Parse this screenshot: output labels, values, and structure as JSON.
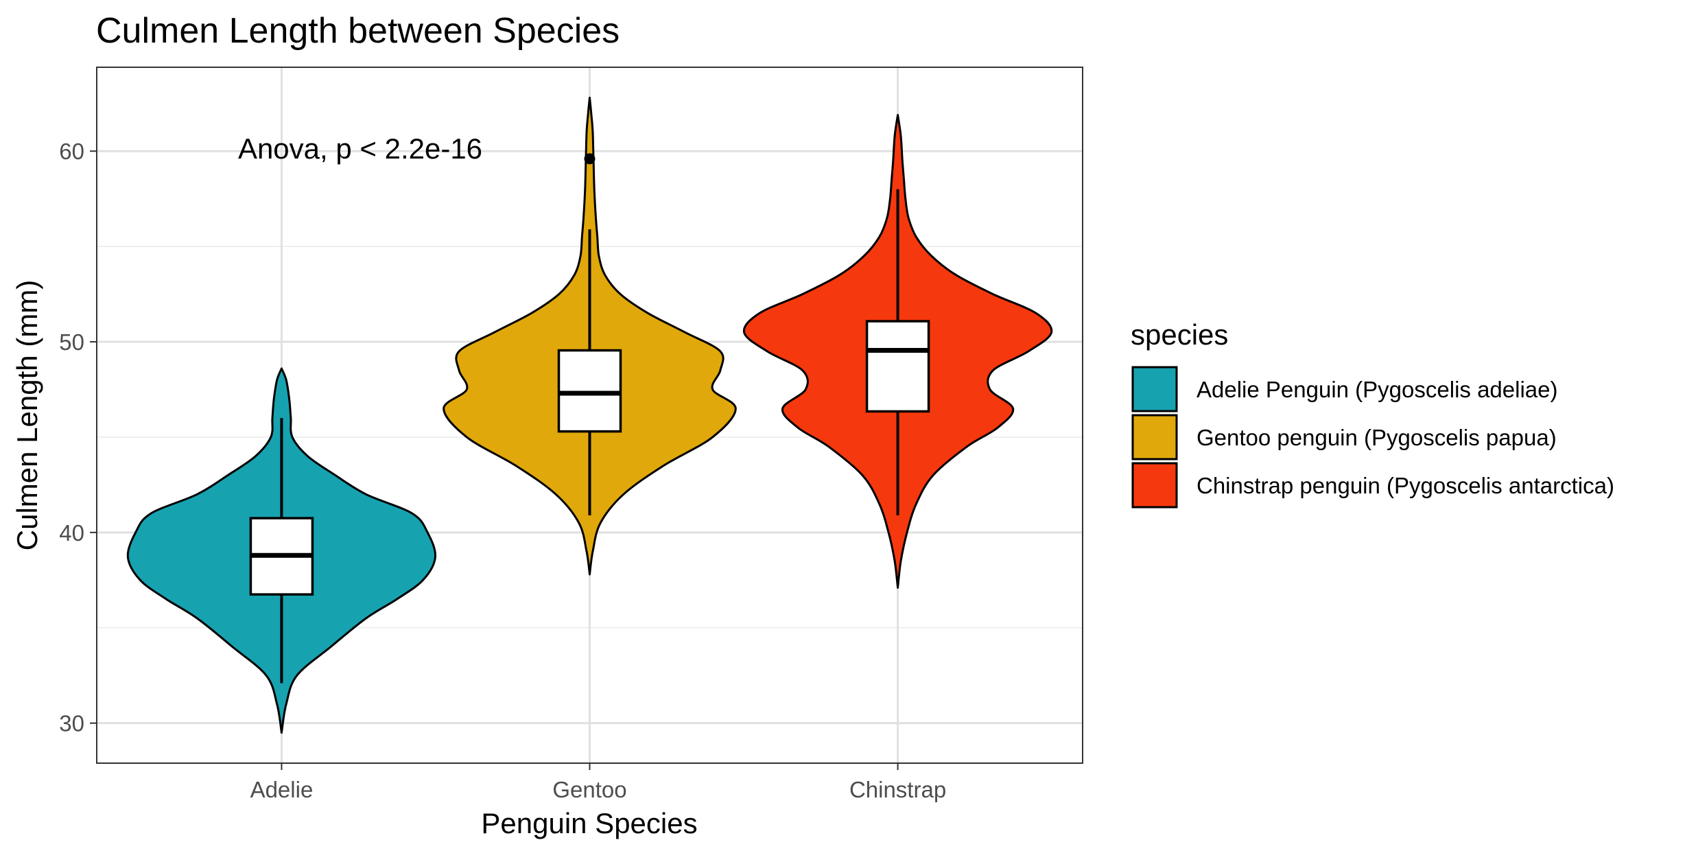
{
  "chart_data": {
    "type": "violin",
    "title": "Culmen Length between Species",
    "xlabel": "Penguin Species",
    "ylabel": "Culmen Length (mm)",
    "ylim": [
      27.9,
      64.4
    ],
    "yticks": [
      30,
      40,
      50,
      60
    ],
    "grid": true,
    "annotation": "Anova, p < 2.2e-16",
    "categories": [
      "Adelie",
      "Gentoo",
      "Chinstrap"
    ],
    "legend": {
      "title": "species",
      "position": "right",
      "entries": [
        {
          "label": "Adelie Penguin (Pygoscelis adeliae)",
          "color": "#17a2b0"
        },
        {
          "label": "Gentoo penguin (Pygoscelis papua)",
          "color": "#e0a80a"
        },
        {
          "label": "Chinstrap penguin (Pygoscelis antarctica)",
          "color": "#f5380e"
        }
      ]
    },
    "series": [
      {
        "category": "Adelie",
        "color": "#17a2b0",
        "box": {
          "whisker_low": 32.1,
          "q1": 36.75,
          "median": 38.8,
          "q3": 40.75,
          "whisker_high": 46.0
        },
        "outliers": [],
        "violin_range": [
          29.5,
          48.6
        ],
        "density": [
          [
            29.5,
            0.0
          ],
          [
            31.0,
            0.03
          ],
          [
            32.5,
            0.1
          ],
          [
            34.0,
            0.32
          ],
          [
            35.5,
            0.55
          ],
          [
            36.5,
            0.75
          ],
          [
            37.5,
            0.92
          ],
          [
            38.7,
            1.0
          ],
          [
            40.0,
            0.95
          ],
          [
            41.0,
            0.85
          ],
          [
            42.0,
            0.55
          ],
          [
            43.0,
            0.35
          ],
          [
            44.0,
            0.17
          ],
          [
            45.0,
            0.07
          ],
          [
            46.0,
            0.06
          ],
          [
            47.0,
            0.05
          ],
          [
            48.0,
            0.03
          ],
          [
            48.6,
            0.0
          ]
        ]
      },
      {
        "category": "Gentoo",
        "color": "#e0a80a",
        "box": {
          "whisker_low": 40.9,
          "q1": 45.3,
          "median": 47.3,
          "q3": 49.55,
          "whisker_high": 55.9
        },
        "outliers": [
          59.6
        ],
        "violin_range": [
          37.8,
          62.8
        ],
        "density": [
          [
            37.8,
            0.0
          ],
          [
            39.0,
            0.02
          ],
          [
            40.5,
            0.07
          ],
          [
            42.0,
            0.22
          ],
          [
            43.5,
            0.48
          ],
          [
            45.0,
            0.8
          ],
          [
            46.5,
            0.95
          ],
          [
            47.5,
            0.8
          ],
          [
            48.5,
            0.85
          ],
          [
            49.5,
            0.85
          ],
          [
            50.5,
            0.62
          ],
          [
            51.5,
            0.38
          ],
          [
            52.5,
            0.2
          ],
          [
            53.5,
            0.1
          ],
          [
            54.5,
            0.06
          ],
          [
            55.5,
            0.05
          ],
          [
            56.5,
            0.04
          ],
          [
            58.0,
            0.03
          ],
          [
            59.5,
            0.025
          ],
          [
            61.0,
            0.02
          ],
          [
            62.0,
            0.01
          ],
          [
            62.8,
            0.0
          ]
        ]
      },
      {
        "category": "Chinstrap",
        "color": "#f5380e",
        "box": {
          "whisker_low": 40.9,
          "q1": 46.35,
          "median": 49.55,
          "q3": 51.08,
          "whisker_high": 58.0
        },
        "outliers": [],
        "violin_range": [
          37.1,
          61.9
        ],
        "density": [
          [
            37.1,
            0.0
          ],
          [
            38.5,
            0.02
          ],
          [
            40.0,
            0.06
          ],
          [
            41.5,
            0.12
          ],
          [
            43.0,
            0.23
          ],
          [
            44.5,
            0.45
          ],
          [
            45.5,
            0.65
          ],
          [
            46.5,
            0.75
          ],
          [
            47.5,
            0.6
          ],
          [
            48.5,
            0.62
          ],
          [
            49.5,
            0.85
          ],
          [
            50.5,
            1.0
          ],
          [
            51.5,
            0.9
          ],
          [
            52.5,
            0.62
          ],
          [
            53.5,
            0.38
          ],
          [
            54.5,
            0.22
          ],
          [
            55.5,
            0.12
          ],
          [
            56.5,
            0.07
          ],
          [
            57.5,
            0.05
          ],
          [
            58.5,
            0.04
          ],
          [
            59.5,
            0.03
          ],
          [
            60.8,
            0.02
          ],
          [
            61.9,
            0.0
          ]
        ]
      }
    ]
  }
}
